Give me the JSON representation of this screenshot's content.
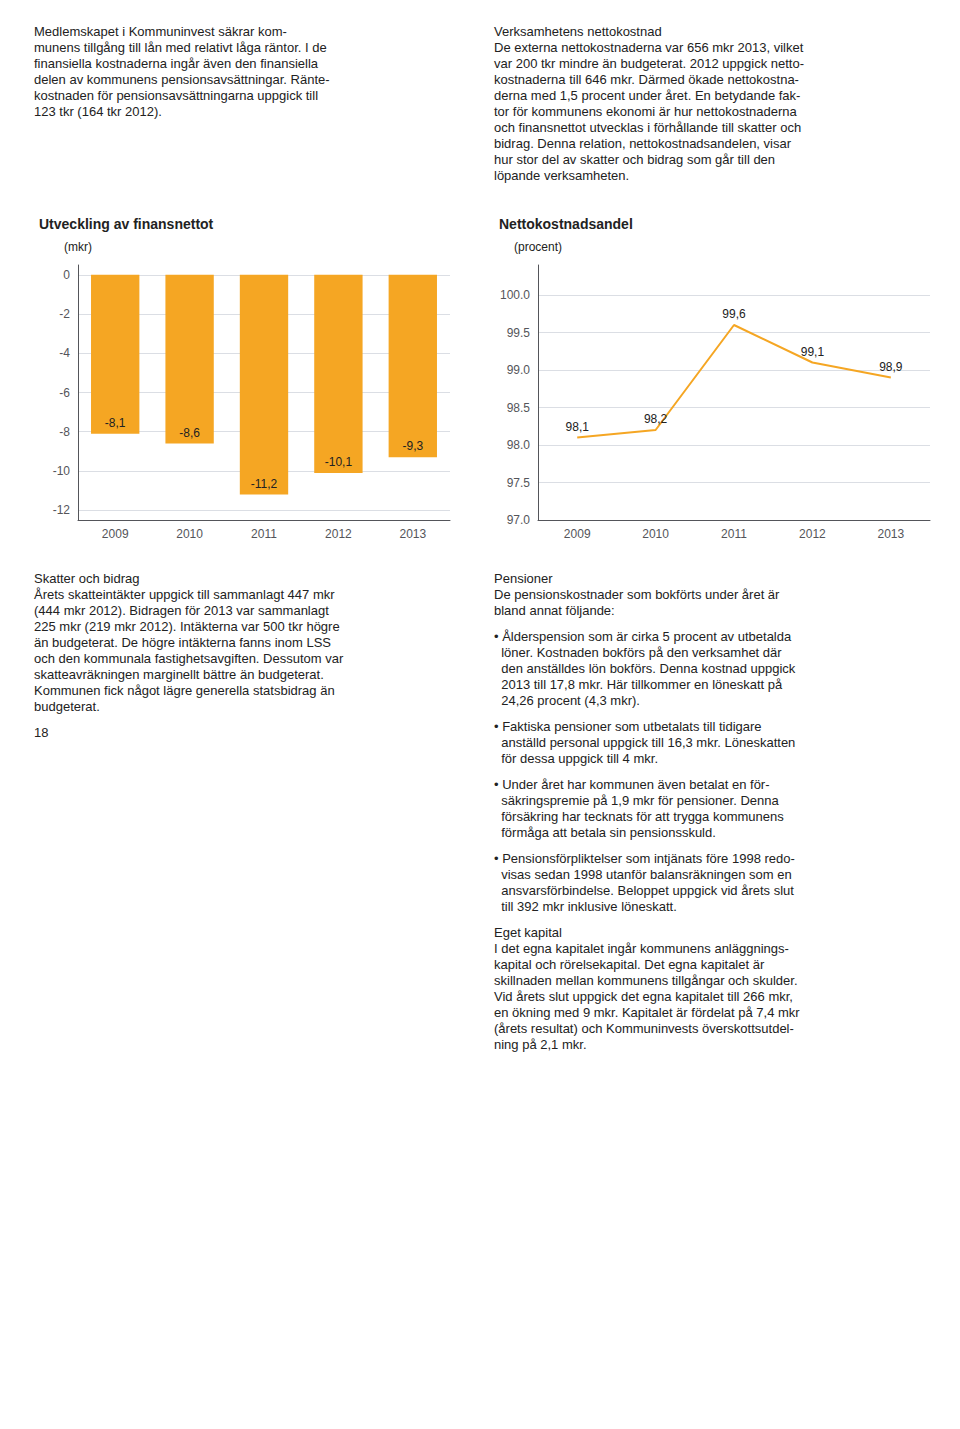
{
  "chart_data": [
    {
      "type": "bar",
      "title": "Utveckling av finansnettot",
      "ylabel": "(mkr)",
      "categories": [
        "2009",
        "2010",
        "2011",
        "2012",
        "2013"
      ],
      "values": [
        -8.1,
        -8.6,
        -11.2,
        -10.1,
        -9.3
      ],
      "value_labels": [
        "-8,1",
        "-8,6",
        "-11,2",
        "-10,1",
        "-9,3"
      ],
      "data_labels": true,
      "color": "#F5A623",
      "ylim": [
        -12.5,
        0.5
      ],
      "yticks": [
        0,
        -2,
        -4,
        -6,
        -8,
        -10,
        -12
      ],
      "grid": true,
      "annotations": [
        [
          "Medlemskapet i Kommuninvest säkrar kom-",
          "munens tillgång till lån med relativt låga räntor. I de",
          "finansiella kostnaderna ingår även den finansiella",
          "delen av kommunens pensionsavsättningar. Ränte-",
          "kostnaden för pensionsavsättningarna uppgick till",
          "123 tkr (164 tkr 2012)."
        ],
        [
          "Skatter och bidrag",
          "Årets skatteintäkter uppgick till sammanlagt 447 mkr",
          "(444 mkr 2012). Bidragen för 2013 var sammanlagt",
          "225 mkr (219 mkr 2012). Intäkterna var 500 tkr högre",
          "än budgeterat. De högre intäkterna fanns inom LSS",
          "och den kommunala fastighetsavgiften. Dessutom var",
          "skatteavräkningen marginellt bättre än budgeterat.",
          "Kommunen fick något lägre generella statsbidrag än",
          "budgeterat."
        ],
        [
          "18"
        ]
      ]
    },
    {
      "type": "line",
      "title": "Nettokostnadsandel",
      "ylabel": "(procent)",
      "categories": [
        "2009",
        "2010",
        "2011",
        "2012",
        "2013"
      ],
      "values": [
        98.1,
        98.2,
        99.6,
        99.1,
        98.9
      ],
      "value_labels": [
        "98,1",
        "98,2",
        "99,6",
        "99,1",
        "98,9"
      ],
      "data_labels": true,
      "color": "#F5A623",
      "ylim": [
        97.0,
        100.4
      ],
      "yticks": [
        {
          "value": 97.0,
          "label": "97.0"
        },
        97.5,
        {
          "value": 98.0,
          "label": "98.0"
        },
        98.5,
        {
          "value": 99.0,
          "label": "99.0"
        },
        99.5,
        {
          "value": 100.0,
          "label": "100.0"
        }
      ],
      "grid": true,
      "annotations": [
        [
          "Verksamhetens nettokostnad",
          "De externa nettokostnaderna var 656 mkr 2013, vilket",
          "var 200 tkr mindre än budgeterat. 2012 uppgick netto-",
          "kostnaderna till 646 mkr. Därmed ökade nettokostna-",
          "derna med 1,5 procent under året. En betydande fak-",
          "tor för kommunens ekonomi är hur nettokostnaderna",
          "och finansnettot utvecklas i förhållande till skatter och",
          "bidrag. Denna relation, nettokostnadsandelen, visar",
          "hur stor del av skatter och bidrag som går till den",
          "löpande verksamheten."
        ],
        [
          "Pensioner",
          "De pensionskostnader som bokförts under året är",
          "bland annat följande:"
        ],
        [
          "• Ålderspension som är cirka 5 procent av utbetalda",
          "  löner. Kostnaden bokförs på den verksamhet där",
          "  den anställdes lön bokförs. Denna kostnad uppgick",
          "  2013 till 17,8 mkr. Här tillkommer en löneskatt på",
          "  24,26 procent (4,3 mkr)."
        ],
        [
          "• Faktiska pensioner som utbetalats till tidigare",
          "  anställd personal uppgick till 16,3 mkr. Löneskatten",
          "  för dessa uppgick till 4 mkr."
        ],
        [
          "• Under året har kommunen även betalat en för-",
          "  säkringspremie på 1,9 mkr för pensioner. Denna",
          "  försäkring har tecknats för att trygga kommunens",
          "  förmåga att betala sin pensionsskuld."
        ],
        [
          "• Pensionsförpliktelser som intjänats före 1998 redo-",
          "  visas sedan 1998 utanför balansräkningen som en",
          "  ansvarsförbindelse. Beloppet uppgick vid årets slut",
          "  till 392 mkr inklusive löneskatt."
        ],
        [
          "Eget kapital",
          "I det egna kapitalet ingår kommunens anläggnings-",
          "kapital och rörelsekapital. Det egna kapitalet är",
          "skillnaden mellan kommunens tillgångar och skulder.",
          "Vid årets slut uppgick det egna kapitalet till 266 mkr,",
          "en ökning med 9 mkr. Kapitalet är fördelat på 7,4 mkr",
          "(årets resultat) och Kommuninvests överskottsutdel-",
          "ning på 2,1 mkr."
        ]
      ]
    }
  ]
}
